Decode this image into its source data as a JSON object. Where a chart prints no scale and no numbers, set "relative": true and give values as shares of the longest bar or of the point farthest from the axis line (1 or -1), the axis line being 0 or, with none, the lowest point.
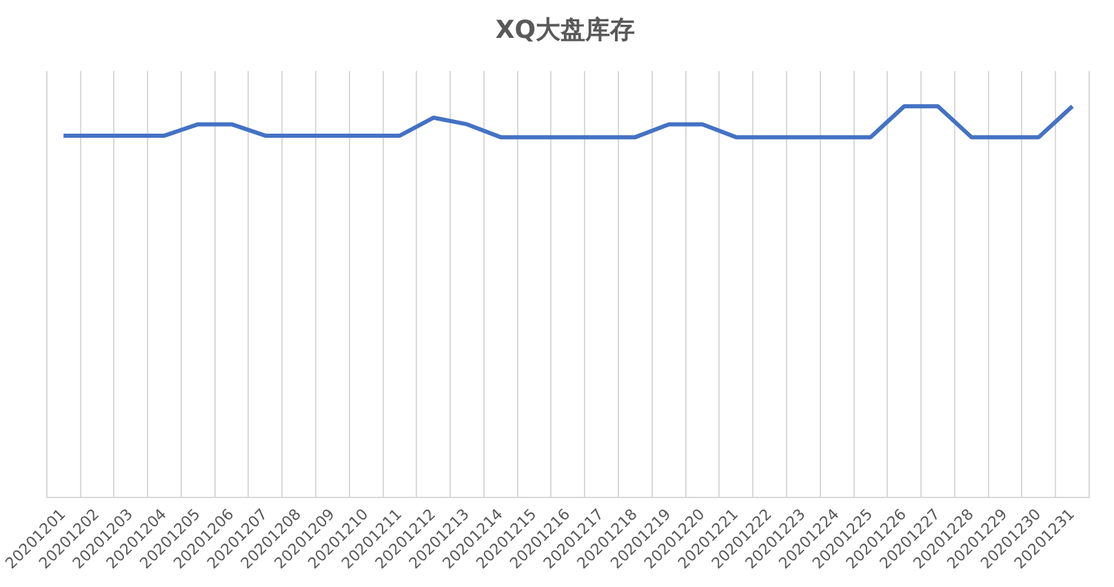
{
  "chart_data": {
    "type": "line",
    "title": "XQ大盘库存",
    "relative": true,
    "grid": "x",
    "marker": "none",
    "line_style": "solid",
    "categories": [
      "20201201",
      "20201202",
      "20201203",
      "20201204",
      "20201205",
      "20201206",
      "20201207",
      "20201208",
      "20201209",
      "20201210",
      "20201211",
      "20201212",
      "20201213",
      "20201214",
      "20201215",
      "20201216",
      "20201217",
      "20201218",
      "20201219",
      "20201220",
      "20201221",
      "20201222",
      "20201223",
      "20201224",
      "20201225",
      "20201226",
      "20201227",
      "20201228",
      "20201229",
      "20201230",
      "20201231"
    ],
    "series": [
      {
        "color": "#4472c4",
        "values": [
          0.925,
          0.925,
          0.925,
          0.925,
          0.954,
          0.954,
          0.925,
          0.925,
          0.925,
          0.925,
          0.925,
          0.971,
          0.954,
          0.921,
          0.921,
          0.921,
          0.921,
          0.921,
          0.954,
          0.954,
          0.921,
          0.921,
          0.921,
          0.921,
          0.921,
          1,
          1,
          0.921,
          0.921,
          0.921,
          1
        ]
      }
    ]
  }
}
